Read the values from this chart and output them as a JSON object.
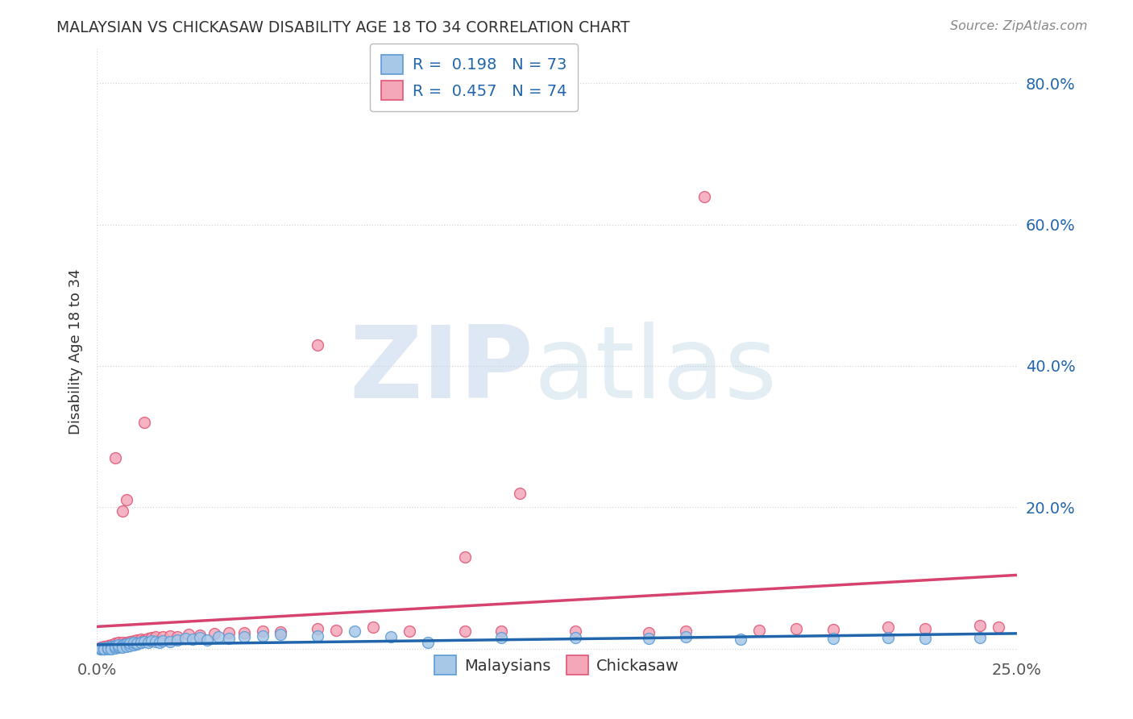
{
  "title": "MALAYSIAN VS CHICKASAW DISABILITY AGE 18 TO 34 CORRELATION CHART",
  "source": "Source: ZipAtlas.com",
  "ylabel": "Disability Age 18 to 34",
  "r_malaysian": 0.198,
  "n_malaysian": 73,
  "r_chickasaw": 0.457,
  "n_chickasaw": 74,
  "blue_scatter_color": "#a8c8e8",
  "blue_edge_color": "#5b9bd5",
  "pink_scatter_color": "#f4a7b9",
  "pink_edge_color": "#e05575",
  "blue_line_color": "#2166ac",
  "pink_line_color": "#d6436e",
  "legend_text_color": "#2166ac",
  "title_color": "#333333",
  "source_color": "#888888",
  "tick_label_color": "#2166ac",
  "xtick_color": "#555555",
  "watermark_zip_color": "#c8d8ee",
  "watermark_atlas_color": "#b0cce0",
  "xlim": [
    0.0,
    0.25
  ],
  "ylim": [
    -0.01,
    0.85
  ],
  "ytick_vals": [
    0.0,
    0.2,
    0.4,
    0.6,
    0.8
  ],
  "ytick_labels": [
    "",
    "20.0%",
    "40.0%",
    "60.0%",
    "80.0%"
  ],
  "xtick_vals": [
    0.0,
    0.25
  ],
  "xtick_labels": [
    "0.0%",
    "25.0%"
  ],
  "malaysian_x": [
    0.001,
    0.001,
    0.001,
    0.002,
    0.002,
    0.002,
    0.002,
    0.002,
    0.003,
    0.003,
    0.003,
    0.003,
    0.004,
    0.004,
    0.004,
    0.004,
    0.004,
    0.005,
    0.005,
    0.005,
    0.005,
    0.005,
    0.006,
    0.006,
    0.006,
    0.006,
    0.007,
    0.007,
    0.007,
    0.007,
    0.008,
    0.008,
    0.008,
    0.009,
    0.009,
    0.009,
    0.01,
    0.01,
    0.01,
    0.011,
    0.011,
    0.012,
    0.012,
    0.013,
    0.014,
    0.015,
    0.016,
    0.017,
    0.018,
    0.02,
    0.022,
    0.024,
    0.026,
    0.028,
    0.03,
    0.033,
    0.036,
    0.04,
    0.045,
    0.05,
    0.06,
    0.07,
    0.08,
    0.09,
    0.11,
    0.13,
    0.15,
    0.16,
    0.175,
    0.2,
    0.215,
    0.225,
    0.24
  ],
  "malaysian_y": [
    0.0,
    0.0,
    0.001,
    0.0,
    0.001,
    0.0,
    0.0,
    0.0,
    0.001,
    0.0,
    0.002,
    0.001,
    0.002,
    0.001,
    0.003,
    0.002,
    0.0,
    0.003,
    0.002,
    0.004,
    0.001,
    0.003,
    0.002,
    0.004,
    0.003,
    0.005,
    0.003,
    0.005,
    0.004,
    0.002,
    0.004,
    0.006,
    0.003,
    0.005,
    0.004,
    0.007,
    0.006,
    0.005,
    0.008,
    0.006,
    0.007,
    0.008,
    0.009,
    0.01,
    0.009,
    0.011,
    0.01,
    0.009,
    0.011,
    0.01,
    0.012,
    0.014,
    0.013,
    0.015,
    0.012,
    0.016,
    0.014,
    0.016,
    0.018,
    0.02,
    0.018,
    0.024,
    0.016,
    0.008,
    0.015,
    0.015,
    0.014,
    0.016,
    0.013,
    0.014,
    0.015,
    0.014,
    0.015
  ],
  "chickasaw_x": [
    0.001,
    0.001,
    0.001,
    0.002,
    0.002,
    0.002,
    0.003,
    0.003,
    0.003,
    0.003,
    0.004,
    0.004,
    0.004,
    0.005,
    0.005,
    0.005,
    0.005,
    0.006,
    0.006,
    0.006,
    0.006,
    0.007,
    0.007,
    0.007,
    0.008,
    0.008,
    0.008,
    0.009,
    0.009,
    0.009,
    0.01,
    0.01,
    0.011,
    0.011,
    0.012,
    0.012,
    0.013,
    0.014,
    0.015,
    0.016,
    0.018,
    0.02,
    0.022,
    0.025,
    0.028,
    0.032,
    0.036,
    0.04,
    0.045,
    0.05,
    0.06,
    0.065,
    0.075,
    0.085,
    0.1,
    0.11,
    0.13,
    0.15,
    0.16,
    0.18,
    0.19,
    0.2,
    0.215,
    0.225,
    0.24,
    0.245,
    0.005,
    0.013,
    0.06,
    0.115,
    0.007,
    0.008,
    0.1,
    0.165
  ],
  "chickasaw_y": [
    0.0,
    0.001,
    0.002,
    0.001,
    0.002,
    0.003,
    0.002,
    0.003,
    0.004,
    0.001,
    0.003,
    0.005,
    0.002,
    0.004,
    0.006,
    0.003,
    0.007,
    0.005,
    0.007,
    0.004,
    0.008,
    0.006,
    0.008,
    0.005,
    0.007,
    0.009,
    0.006,
    0.008,
    0.01,
    0.007,
    0.009,
    0.011,
    0.01,
    0.012,
    0.011,
    0.013,
    0.012,
    0.014,
    0.015,
    0.016,
    0.017,
    0.018,
    0.016,
    0.02,
    0.019,
    0.021,
    0.022,
    0.022,
    0.024,
    0.023,
    0.028,
    0.026,
    0.03,
    0.025,
    0.024,
    0.025,
    0.024,
    0.022,
    0.024,
    0.026,
    0.028,
    0.027,
    0.03,
    0.028,
    0.032,
    0.03,
    0.27,
    0.32,
    0.43,
    0.22,
    0.195,
    0.21,
    0.13,
    0.64
  ]
}
